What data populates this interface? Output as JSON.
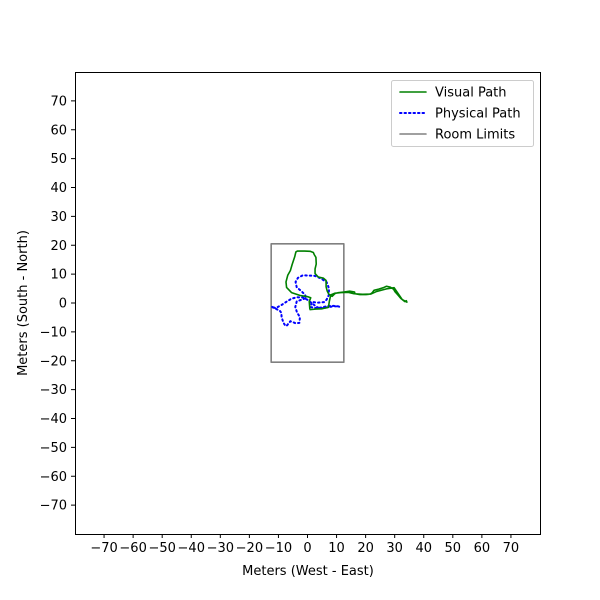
{
  "chart_data": {
    "type": "line",
    "title": "",
    "xlabel": "Meters (West - East)",
    "ylabel": "Meters (South - North)",
    "xlim": [
      -80,
      80
    ],
    "ylim": [
      -80,
      80
    ],
    "xticks": [
      -70,
      -60,
      -50,
      -40,
      -30,
      -20,
      -10,
      0,
      10,
      20,
      30,
      40,
      50,
      60,
      70
    ],
    "yticks": [
      70,
      60,
      50,
      40,
      30,
      20,
      10,
      0,
      -10,
      -20,
      -30,
      -40,
      -50,
      -60,
      -70
    ],
    "grid": false,
    "legend_position": "top-right",
    "series": [
      {
        "name": "Visual Path",
        "color": "#008000",
        "style": "solid",
        "points": [
          [
            0.8,
            -2.0
          ],
          [
            0.6,
            0.5
          ],
          [
            1.1,
            1.8
          ],
          [
            0,
            2.2
          ],
          [
            -2.5,
            2.6
          ],
          [
            -5.5,
            3.6
          ],
          [
            -7.2,
            5.4
          ],
          [
            -7.4,
            7.3
          ],
          [
            -6.8,
            9.6
          ],
          [
            -5.9,
            11.2
          ],
          [
            -5.3,
            13.3
          ],
          [
            -4.4,
            16.0
          ],
          [
            -4.0,
            17.7
          ],
          [
            -3.5,
            18.0
          ],
          [
            -1.0,
            18.0
          ],
          [
            0.9,
            17.9
          ],
          [
            2.0,
            17.5
          ],
          [
            2.3,
            16.8
          ],
          [
            2.9,
            15.8
          ],
          [
            3.0,
            13.5
          ],
          [
            2.6,
            11.8
          ],
          [
            2.6,
            10.2
          ],
          [
            3.7,
            9.0
          ],
          [
            5.5,
            8.6
          ],
          [
            6.4,
            7.8
          ],
          [
            6.4,
            5.6
          ],
          [
            6.8,
            4.1
          ],
          [
            7.3,
            3.1
          ],
          [
            8.5,
            2.3
          ],
          [
            9.5,
            3.3
          ],
          [
            10.6,
            3.6
          ],
          [
            12.5,
            3.8
          ],
          [
            14.5,
            4.1
          ],
          [
            16.2,
            3.8
          ],
          [
            16.3,
            3.2
          ],
          [
            18.0,
            2.9
          ],
          [
            20.1,
            2.9
          ],
          [
            21.0,
            3.0
          ],
          [
            21.8,
            3.2
          ],
          [
            22.3,
            3.6
          ],
          [
            22.9,
            4.4
          ],
          [
            24.5,
            4.8
          ],
          [
            26.1,
            5.3
          ],
          [
            27.2,
            5.8
          ],
          [
            28.5,
            5.5
          ],
          [
            29.6,
            4.8
          ],
          [
            30.1,
            3.9
          ],
          [
            31.0,
            2.9
          ],
          [
            32.2,
            1.5
          ],
          [
            33.5,
            0.5
          ],
          [
            34.0,
            0.8
          ],
          [
            34.2,
            0.3
          ],
          [
            32.6,
            1.2
          ],
          [
            29.8,
            5.3
          ],
          [
            27.2,
            4.9
          ],
          [
            23.8,
            4.0
          ],
          [
            21.8,
            3.1
          ],
          [
            19.0,
            3.0
          ],
          [
            16.0,
            3.2
          ],
          [
            14.0,
            3.7
          ],
          [
            11.5,
            3.6
          ],
          [
            9.5,
            3.4
          ],
          [
            8.0,
            2.8
          ],
          [
            7.5,
            0.5
          ],
          [
            7.2,
            -1.5
          ],
          [
            5.0,
            -2.0
          ],
          [
            2.8,
            -2.1
          ],
          [
            0.9,
            -2.3
          ]
        ]
      },
      {
        "name": "Physical Path",
        "color": "#0000ff",
        "style": "dotted",
        "points": [
          [
            10.8,
            -1.2
          ],
          [
            9.0,
            -1.0
          ],
          [
            7.2,
            -1.0
          ],
          [
            5.0,
            -1.5
          ],
          [
            3.2,
            -1.8
          ],
          [
            1.0,
            -1.4
          ],
          [
            1.5,
            0.4
          ],
          [
            3.5,
            0.1
          ],
          [
            5.7,
            0.3
          ],
          [
            6.6,
            1.2
          ],
          [
            7.3,
            2.7
          ],
          [
            7.4,
            5.0
          ],
          [
            6.6,
            7.2
          ],
          [
            4.6,
            8.5
          ],
          [
            2.5,
            9.4
          ],
          [
            0.5,
            9.5
          ],
          [
            -1.6,
            9.6
          ],
          [
            -3.3,
            8.7
          ],
          [
            -4.1,
            7.3
          ],
          [
            -3.7,
            5.4
          ],
          [
            -2.2,
            4.2
          ],
          [
            -1.0,
            3.0
          ],
          [
            -0.3,
            1.8
          ],
          [
            -1.8,
            1.2
          ],
          [
            -3.7,
            0.6
          ],
          [
            -4.2,
            -1.4
          ],
          [
            -3.6,
            -3.3
          ],
          [
            -2.6,
            -4.9
          ],
          [
            -2.8,
            -6.9
          ],
          [
            -4.1,
            -7.0
          ],
          [
            -5.9,
            -6.3
          ],
          [
            -7.0,
            -7.7
          ],
          [
            -7.5,
            -8.0
          ],
          [
            -8.2,
            -7.0
          ],
          [
            -8.9,
            -5.0
          ],
          [
            -9.0,
            -3.4
          ],
          [
            -9.6,
            -2.6
          ],
          [
            -11.8,
            -1.6
          ],
          [
            -12.4,
            -1.2
          ],
          [
            -11.0,
            -1.8
          ],
          [
            -8.8,
            -0.6
          ],
          [
            -7.0,
            0.6
          ],
          [
            -5.5,
            1.5
          ],
          [
            -3.5,
            2.0
          ],
          [
            -1.6,
            1.9
          ],
          [
            0.2,
            1.0
          ],
          [
            2.0,
            -0.5
          ],
          [
            3.6,
            -1.6
          ],
          [
            5.5,
            -1.8
          ],
          [
            7.3,
            -1.4
          ],
          [
            9.2,
            -1.1
          ],
          [
            10.9,
            -1.3
          ]
        ]
      },
      {
        "name": "Room Limits",
        "color": "#808080",
        "style": "solid",
        "points": [
          [
            -12.5,
            -20.5
          ],
          [
            12.5,
            -20.5
          ],
          [
            12.5,
            20.5
          ],
          [
            -12.5,
            20.5
          ],
          [
            -12.5,
            -20.5
          ]
        ]
      }
    ]
  }
}
